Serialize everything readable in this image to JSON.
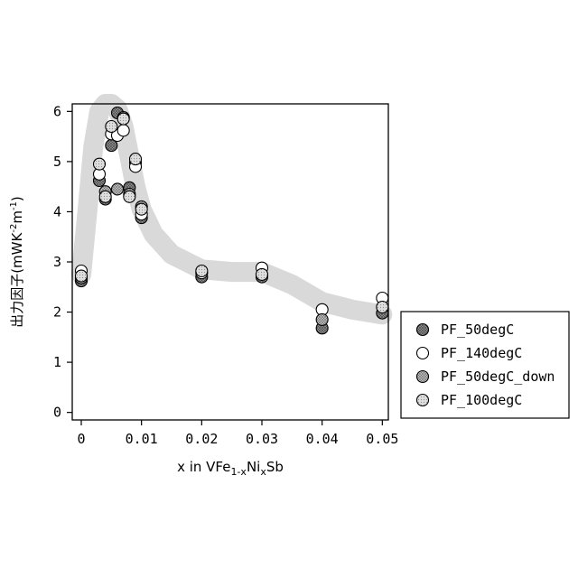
{
  "chart_data": {
    "type": "scatter",
    "xlabel": {
      "prefix": "x in VFe",
      "sub1": "1-x",
      "mid": "Ni",
      "sub2": "x",
      "suffix": "Sb"
    },
    "ylabel": {
      "main": "出力因子(mWK",
      "sup1": "-2",
      "mid": "m",
      "sup2": "-1",
      "close": ")"
    },
    "xlim": [
      -0.0015,
      0.051
    ],
    "ylim": [
      -0.15,
      6.15
    ],
    "x_ticks": [
      0,
      0.01,
      0.02,
      0.03,
      0.04,
      0.05
    ],
    "x_tick_labels": [
      "0",
      "0.01",
      "0.02",
      "0.03",
      "0.04",
      "0.05"
    ],
    "y_ticks": [
      0,
      1,
      2,
      3,
      4,
      5,
      6
    ],
    "y_tick_labels": [
      "0",
      "1",
      "2",
      "3",
      "4",
      "5",
      "6"
    ],
    "grid": false,
    "legend_position": "right",
    "trend_band": {
      "color": "#d9d9d9",
      "x": [
        0,
        0.001,
        0.002,
        0.003,
        0.004,
        0.005,
        0.006,
        0.007,
        0.008,
        0.009,
        0.01,
        0.012,
        0.015,
        0.02,
        0.025,
        0.03,
        0.035,
        0.04,
        0.045,
        0.05
      ],
      "y": [
        2.75,
        4.0,
        5.3,
        6.0,
        6.15,
        6.15,
        6.05,
        5.7,
        5.1,
        4.5,
        4.05,
        3.55,
        3.15,
        2.85,
        2.8,
        2.8,
        2.55,
        2.2,
        2.05,
        1.95
      ]
    },
    "series": [
      {
        "name": "PF_50degC",
        "fill": "#8c8c8c",
        "pattern": "cross",
        "points": [
          [
            0,
            2.62
          ],
          [
            0.003,
            4.62
          ],
          [
            0.004,
            4.25
          ],
          [
            0.005,
            5.32
          ],
          [
            0.006,
            5.97
          ],
          [
            0.007,
            5.88
          ],
          [
            0.008,
            4.48
          ],
          [
            0.009,
            4.98
          ],
          [
            0.01,
            3.88
          ],
          [
            0.02,
            2.7
          ],
          [
            0.03,
            2.7
          ],
          [
            0.04,
            1.68
          ],
          [
            0.05,
            1.98
          ]
        ]
      },
      {
        "name": "PF_140degC",
        "fill": "#ffffff",
        "pattern": "none",
        "points": [
          [
            0,
            2.82
          ],
          [
            0.003,
            4.75
          ],
          [
            0.005,
            5.55
          ],
          [
            0.006,
            5.52
          ],
          [
            0.007,
            5.62
          ],
          [
            0.009,
            4.9
          ],
          [
            0.01,
            3.95
          ],
          [
            0.02,
            2.78
          ],
          [
            0.03,
            2.88
          ],
          [
            0.04,
            2.05
          ],
          [
            0.05,
            2.28
          ]
        ]
      },
      {
        "name": "PF_50degC_down",
        "fill": "#b5b5b5",
        "pattern": "cross",
        "points": [
          [
            0,
            2.68
          ],
          [
            0.004,
            4.4
          ],
          [
            0.006,
            4.45
          ],
          [
            0.008,
            4.35
          ],
          [
            0.01,
            4.1
          ],
          [
            0.04,
            1.85
          ]
        ]
      },
      {
        "name": "PF_100degC",
        "fill": "#d3d3d3",
        "pattern": "dots",
        "points": [
          [
            0,
            2.72
          ],
          [
            0.003,
            4.95
          ],
          [
            0.004,
            4.3
          ],
          [
            0.005,
            5.7
          ],
          [
            0.007,
            5.85
          ],
          [
            0.008,
            4.3
          ],
          [
            0.009,
            5.05
          ],
          [
            0.01,
            4.05
          ],
          [
            0.02,
            2.82
          ],
          [
            0.03,
            2.75
          ],
          [
            0.05,
            2.1
          ]
        ]
      }
    ]
  }
}
